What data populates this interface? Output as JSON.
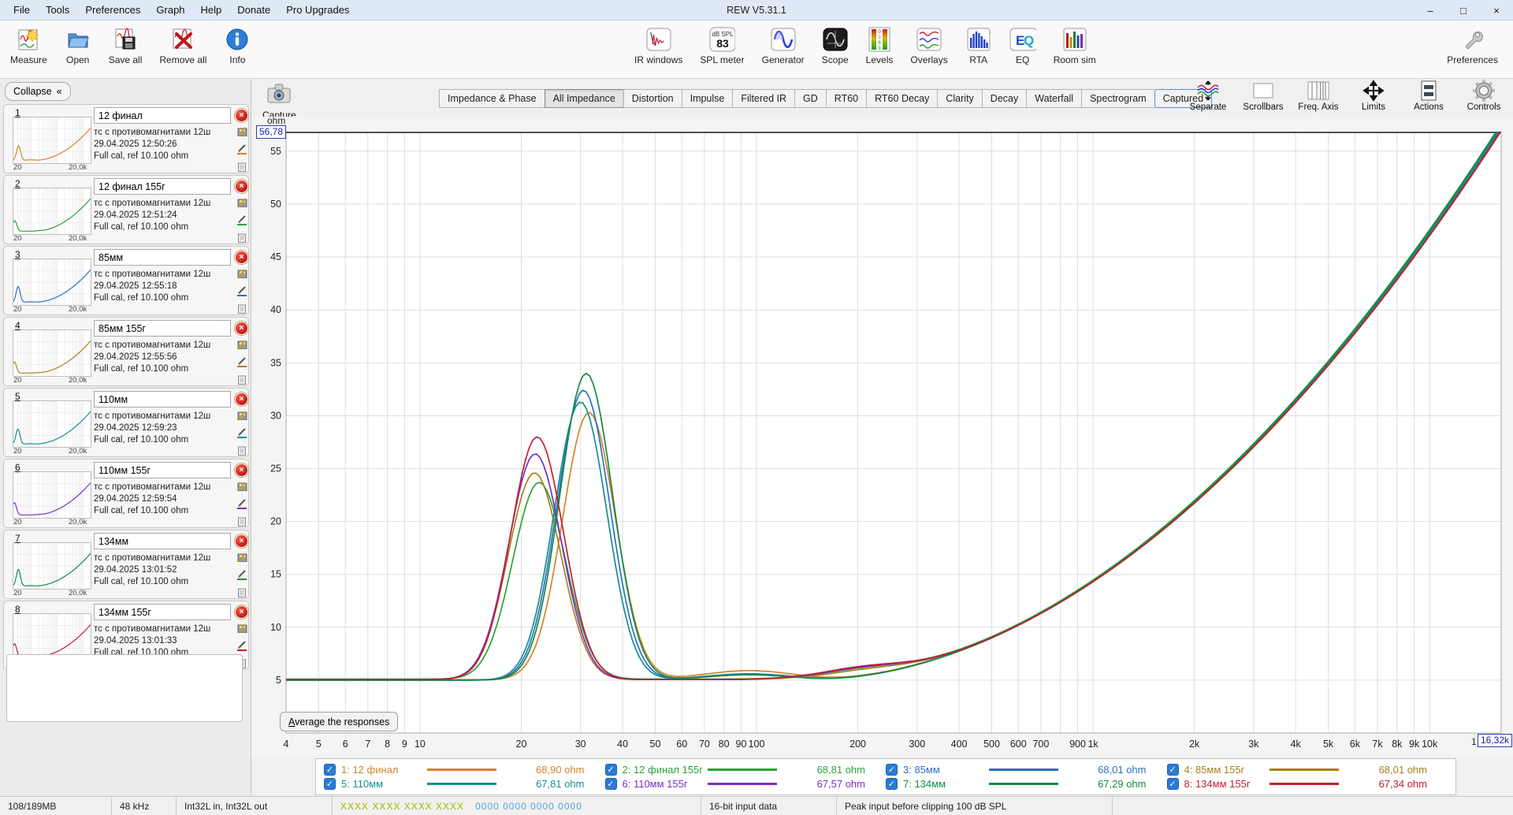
{
  "window": {
    "title": "REW V5.31.1",
    "minimize": "–",
    "maximize": "□",
    "close": "×"
  },
  "menu": [
    "File",
    "Tools",
    "Preferences",
    "Graph",
    "Help",
    "Donate",
    "Pro Upgrades"
  ],
  "toolbar": {
    "left": [
      {
        "id": "measure",
        "label": "Measure"
      },
      {
        "id": "open",
        "label": "Open"
      },
      {
        "id": "save-all",
        "label": "Save all"
      },
      {
        "id": "remove-all",
        "label": "Remove all"
      },
      {
        "id": "info",
        "label": "Info"
      }
    ],
    "center": [
      {
        "id": "ir-windows",
        "label": "IR windows"
      },
      {
        "id": "spl-meter",
        "label": "SPL meter",
        "badge_top": "dB SPL",
        "badge_value": "83"
      },
      {
        "id": "generator",
        "label": "Generator"
      },
      {
        "id": "scope",
        "label": "Scope"
      },
      {
        "id": "levels",
        "label": "Levels"
      },
      {
        "id": "overlays",
        "label": "Overlays"
      },
      {
        "id": "rta",
        "label": "RTA"
      },
      {
        "id": "eq",
        "label": "EQ"
      },
      {
        "id": "room-sim",
        "label": "Room sim"
      }
    ],
    "right": [
      {
        "id": "preferences",
        "label": "Preferences"
      }
    ]
  },
  "sidebar": {
    "collapse_label": "Collapse",
    "collapse_glyph": "«",
    "thumb_left": "20",
    "thumb_right": "20,0k",
    "measurements": [
      {
        "num": "1",
        "name": "12 финал",
        "desc": "тс с противомагнитами 12ш",
        "date": "29.04.2025 12:50:26",
        "cal": "Full cal, ref 10.100 ohm"
      },
      {
        "num": "2",
        "name": "12 финал 155г",
        "desc": "тс с противомагнитами 12ш",
        "date": "29.04.2025 12:51:24",
        "cal": "Full cal, ref 10.100 ohm"
      },
      {
        "num": "3",
        "name": "85мм",
        "desc": "тс с противомагнитами 12ш",
        "date": "29.04.2025 12:55:18",
        "cal": "Full cal, ref 10.100 ohm"
      },
      {
        "num": "4",
        "name": "85мм 155г",
        "desc": "тс с противомагнитами 12ш",
        "date": "29.04.2025 12:55:56",
        "cal": "Full cal, ref 10.100 ohm"
      },
      {
        "num": "5",
        "name": "110мм",
        "desc": "тс с противомагнитами 12ш",
        "date": "29.04.2025 12:59:23",
        "cal": "Full cal, ref 10.100 ohm"
      },
      {
        "num": "6",
        "name": "110мм 155г",
        "desc": "тс с противомагнитами 12ш",
        "date": "29.04.2025 12:59:54",
        "cal": "Full cal, ref 10.100 ohm"
      },
      {
        "num": "7",
        "name": "134мм",
        "desc": "тс с противомагнитами 12ш",
        "date": "29.04.2025 13:01:52",
        "cal": "Full cal, ref 10.100 ohm"
      },
      {
        "num": "8",
        "name": "134мм 155г",
        "desc": "тс с противомагнитами 12ш",
        "date": "29.04.2025 13:01:33",
        "cal": "Full cal, ref 10.100 ohm"
      }
    ]
  },
  "capture": {
    "label": "Capture"
  },
  "tabs": [
    "Impedance & Phase",
    "All Impedance",
    "Distortion",
    "Impulse",
    "Filtered IR",
    "GD",
    "RT60",
    "RT60 Decay",
    "Clarity",
    "Decay",
    "Waterfall",
    "Spectrogram",
    "Captured"
  ],
  "tabs_selected": "All Impedance",
  "tabs_focused": "Captured",
  "graph_controls": [
    {
      "id": "separate",
      "label": "Separate"
    },
    {
      "id": "scrollbars",
      "label": "Scrollbars"
    },
    {
      "id": "freq-axis",
      "label": "Freq. Axis"
    },
    {
      "id": "limits",
      "label": "Limits"
    },
    {
      "id": "actions",
      "label": "Actions"
    },
    {
      "id": "controls",
      "label": "Controls"
    }
  ],
  "graph": {
    "ylabel": "ohm",
    "y_top_box": "56,78",
    "x_right_box": "16,32k",
    "x_right_partial": "1",
    "average_button": "Average the responses",
    "yticks": [
      55,
      50,
      45,
      40,
      35,
      30,
      25,
      20,
      15,
      10,
      5
    ],
    "xticks": [
      {
        "f": 4,
        "l": "4"
      },
      {
        "f": 5,
        "l": "5"
      },
      {
        "f": 6,
        "l": "6"
      },
      {
        "f": 7,
        "l": "7"
      },
      {
        "f": 8,
        "l": "8"
      },
      {
        "f": 9,
        "l": "9"
      },
      {
        "f": 10,
        "l": "10"
      },
      {
        "f": 20,
        "l": "20"
      },
      {
        "f": 30,
        "l": "30"
      },
      {
        "f": 40,
        "l": "40"
      },
      {
        "f": 50,
        "l": "50"
      },
      {
        "f": 60,
        "l": "60"
      },
      {
        "f": 70,
        "l": "70"
      },
      {
        "f": 80,
        "l": "80"
      },
      {
        "f": 90,
        "l": "90"
      },
      {
        "f": 100,
        "l": "100"
      },
      {
        "f": 200,
        "l": "200"
      },
      {
        "f": 300,
        "l": "300"
      },
      {
        "f": 400,
        "l": "400"
      },
      {
        "f": 500,
        "l": "500"
      },
      {
        "f": 600,
        "l": "600"
      },
      {
        "f": 700,
        "l": "700"
      },
      {
        "f": 900,
        "l": "900"
      },
      {
        "f": 1000,
        "l": "1k"
      },
      {
        "f": 2000,
        "l": "2k"
      },
      {
        "f": 3000,
        "l": "3k"
      },
      {
        "f": 4000,
        "l": "4k"
      },
      {
        "f": 5000,
        "l": "5k"
      },
      {
        "f": 6000,
        "l": "6k"
      },
      {
        "f": 7000,
        "l": "7k"
      },
      {
        "f": 8000,
        "l": "8k"
      },
      {
        "f": 9000,
        "l": "9k"
      },
      {
        "f": 10000,
        "l": "10k"
      }
    ]
  },
  "chart_data": {
    "type": "line",
    "title": "All Impedance",
    "x_axis": {
      "scale": "log",
      "unit": "Hz",
      "min": 4,
      "max": 16320,
      "grid": true
    },
    "y_axis": {
      "unit": "ohm",
      "min": 0,
      "max": 56.78,
      "tick_step": 5,
      "grid": true
    },
    "legend_position": "bottom",
    "model": "Z(f) = min_ohm + (peak_ohm - min_ohm) * exp(-0.5*(ln(f/resonance_hz)/0.18)^2) + sum(bumps a*exp(-0.5*(ln(f/bf)/0.3)^2)) + (end_ohm - min_ohm)*(log10(f/140)/log10(16320/140))^1.95 for f>140",
    "series": [
      {
        "name": "12 финал",
        "color": "#d4832a",
        "resonance_hz": 31.8,
        "peak_ohm": 30.3,
        "min_ohm": 5.05,
        "end_ohm": 57.1,
        "cursor_ohm": "68,90 ohm",
        "bumps": [
          {
            "f": 95,
            "a": 0.85
          }
        ]
      },
      {
        "name": "12 финал 155г",
        "color": "#2da23a",
        "resonance_hz": 22.6,
        "peak_ohm": 23.7,
        "min_ohm": 5.1,
        "end_ohm": 57.6,
        "cursor_ohm": "68,81 ohm",
        "bumps": [
          {
            "f": 200,
            "a": 0.7
          }
        ]
      },
      {
        "name": "85мм",
        "color": "#2e6fc0",
        "resonance_hz": 30.6,
        "peak_ohm": 32.4,
        "min_ohm": 5.0,
        "end_ohm": 57.2,
        "cursor_ohm": "68,01 ohm",
        "bumps": [
          {
            "f": 95,
            "a": 0.6
          }
        ]
      },
      {
        "name": "85мм 155г",
        "color": "#a8811f",
        "resonance_hz": 21.9,
        "peak_ohm": 24.6,
        "min_ohm": 5.05,
        "end_ohm": 56.9,
        "cursor_ohm": "68,01 ohm",
        "bumps": [
          {
            "f": 200,
            "a": 0.6
          }
        ]
      },
      {
        "name": "110мм",
        "color": "#178e8e",
        "resonance_hz": 30.0,
        "peak_ohm": 31.3,
        "min_ohm": 5.0,
        "end_ohm": 57.3,
        "cursor_ohm": "67,81 ohm",
        "bumps": [
          {
            "f": 95,
            "a": 0.55
          }
        ]
      },
      {
        "name": "110мм 155г",
        "color": "#7a2fc5",
        "resonance_hz": 22.0,
        "peak_ohm": 26.4,
        "min_ohm": 5.05,
        "end_ohm": 57.0,
        "cursor_ohm": "67,57 ohm",
        "bumps": [
          {
            "f": 200,
            "a": 0.8
          }
        ]
      },
      {
        "name": "134мм",
        "color": "#108a46",
        "resonance_hz": 31.2,
        "peak_ohm": 34.0,
        "min_ohm": 5.0,
        "end_ohm": 57.5,
        "cursor_ohm": "67,29 ohm",
        "bumps": [
          {
            "f": 95,
            "a": 0.5
          }
        ]
      },
      {
        "name": "134мм 155г",
        "color": "#c02030",
        "resonance_hz": 22.3,
        "peak_ohm": 28.0,
        "min_ohm": 5.05,
        "end_ohm": 56.95,
        "cursor_ohm": "67,34 ohm",
        "bumps": [
          {
            "f": 200,
            "a": 0.9
          }
        ]
      }
    ]
  },
  "legend": {
    "entries": [
      {
        "label": "1: 12 финал",
        "ohm": "68,90 ohm",
        "color": "#d4832a"
      },
      {
        "label": "2: 12 финал 155г",
        "ohm": "68,81 ohm",
        "color": "#2da23a"
      },
      {
        "label": "3: 85мм",
        "ohm": "68,01 ohm",
        "color": "#2e6fc0"
      },
      {
        "label": "4: 85мм 155г",
        "ohm": "68,01 ohm",
        "color": "#a8811f"
      },
      {
        "label": "5: 110мм",
        "ohm": "67,81 ohm",
        "color": "#178e8e"
      },
      {
        "label": "6: 110мм 155г",
        "ohm": "67,57 ohm",
        "color": "#7a2fc5"
      },
      {
        "label": "7: 134мм",
        "ohm": "67,29 ohm",
        "color": "#108a46"
      },
      {
        "label": "8: 134мм 155г",
        "ohm": "67,34 ohm",
        "color": "#c02030"
      }
    ]
  },
  "statusbar": {
    "memory": "108/189MB",
    "samplerate": "48 kHz",
    "io": "Int32L in, Int32L out",
    "channel_x": "XXXX XXXX  XXXX XXXX",
    "channel_0": "0000 0000  0000 0000",
    "channel_x_color": "#a4b400",
    "channel_0_color": "#56a4d8",
    "bits": "16-bit input data",
    "peak": "Peak input before clipping 100 dB SPL"
  }
}
